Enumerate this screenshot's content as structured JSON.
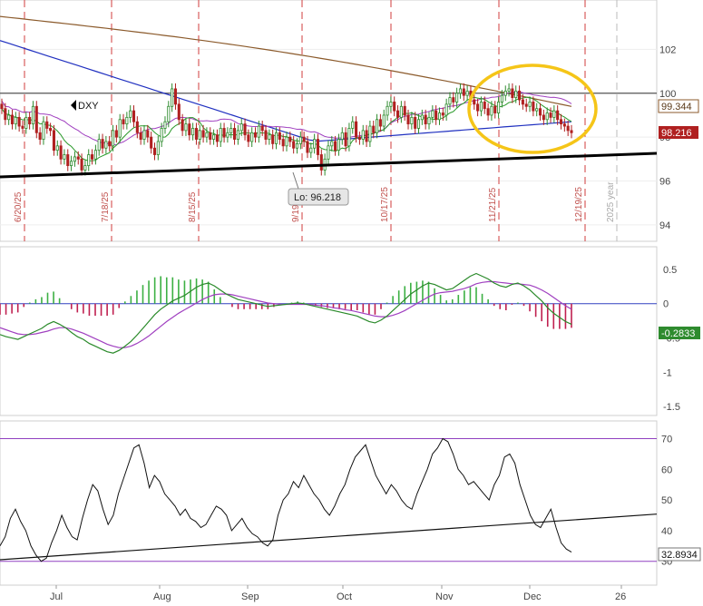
{
  "chart_data": [
    {
      "type": "candlestick",
      "panel": "price",
      "symbol": "DXY",
      "y_axis_ticks": [
        "102",
        "100",
        "98",
        "96",
        "94"
      ],
      "ylim": [
        93.5,
        104
      ],
      "price_labels": {
        "ma_value": "99.344",
        "last_value": "98.216"
      },
      "low_annotation": "Lo: 96.218",
      "vertical_date_labels": [
        "6/20/25",
        "7/18/25",
        "8/15/25",
        "9/19",
        "10/17/25",
        "11/21/25",
        "12/19/25",
        "2025 year"
      ],
      "horizontal_level": 100.0,
      "approx_close": [
        99.3,
        98.8,
        99.0,
        98.6,
        98.9,
        98.5,
        98.4,
        98.9,
        98.6,
        99.4,
        98.2,
        97.9,
        98.7,
        98.4,
        98.3,
        97.4,
        97.6,
        97.0,
        97.2,
        96.7,
        96.9,
        97.1,
        97.0,
        96.5,
        96.7,
        97.2,
        97.0,
        97.4,
        97.9,
        97.5,
        97.8,
        97.6,
        98.3,
        98.0,
        98.8,
        98.6,
        98.9,
        99.2,
        98.7,
        98.2,
        97.9,
        98.3,
        98.0,
        97.5,
        97.2,
        97.8,
        98.4,
        98.7,
        99.4,
        100.2,
        99.5,
        98.8,
        98.3,
        98.6,
        98.1,
        98.4,
        97.9,
        98.3,
        98.0,
        98.2,
        97.9,
        98.1,
        97.8,
        98.4,
        98.0,
        98.2,
        98.4,
        97.9,
        98.3,
        98.6,
        98.1,
        97.8,
        98.2,
        98.0,
        98.5,
        98.3,
        97.9,
        98.1,
        97.7,
        98.2,
        97.9,
        97.6,
        98.0,
        97.8,
        97.5,
        97.7,
        98.0,
        97.8,
        97.3,
        97.5,
        97.9,
        97.2,
        96.5,
        97.0,
        97.6,
        97.8,
        97.4,
        97.9,
        98.2,
        97.6,
        98.4,
        98.7,
        98.0,
        97.9,
        98.3,
        97.8,
        98.5,
        98.2,
        98.8,
        98.5,
        99.0,
        99.4,
        99.6,
        99.2,
        98.9,
        99.4,
        99.0,
        98.6,
        98.9,
        98.4,
        98.8,
        99.0,
        98.6,
        98.9,
        99.2,
        98.8,
        99.1,
        99.0,
        99.5,
        99.8,
        99.6,
        100.0,
        100.2,
        99.9,
        100.1,
        99.7,
        99.5,
        99.2,
        99.6,
        99.3,
        99.0,
        99.4,
        99.1,
        99.6,
        99.9,
        100.1,
        100.2,
        99.8,
        100.1,
        99.7,
        99.5,
        99.4,
        99.6,
        99.2,
        99.3,
        99.0,
        98.8,
        99.1,
        98.9,
        99.2,
        98.8,
        98.6,
        98.5,
        98.3,
        98.2
      ],
      "ma_200_start": 103.5,
      "ma_200_end": 99.4,
      "ma_100_start": 102.4,
      "ma_100_end": 98.7
    },
    {
      "type": "line",
      "panel": "macd",
      "y_axis_ticks": [
        "0.5",
        "0",
        "-0.5",
        "-1",
        "-1.5"
      ],
      "ylim": [
        -1.55,
        0.75
      ],
      "last_value": "-0.2833",
      "series": [
        {
          "approx_values": [
            -0.45,
            -0.48,
            -0.5,
            -0.52,
            -0.48,
            -0.44,
            -0.4,
            -0.36,
            -0.3,
            -0.26,
            -0.3,
            -0.35,
            -0.42,
            -0.48,
            -0.52,
            -0.58,
            -0.62,
            -0.66,
            -0.7,
            -0.72,
            -0.68,
            -0.62,
            -0.55,
            -0.46,
            -0.36,
            -0.26,
            -0.16,
            -0.08,
            -0.02,
            0.04,
            0.08,
            0.12,
            0.18,
            0.24,
            0.28,
            0.3,
            0.26,
            0.2,
            0.14,
            0.1,
            0.06,
            0.04,
            0.02,
            0.0,
            -0.02,
            -0.04,
            -0.03,
            -0.02,
            -0.01,
            0.0,
            0.01,
            0.0,
            -0.02,
            -0.04,
            -0.06,
            -0.08,
            -0.1,
            -0.12,
            -0.14,
            -0.16,
            -0.18,
            -0.22,
            -0.26,
            -0.28,
            -0.24,
            -0.18,
            -0.1,
            -0.02,
            0.06,
            0.14,
            0.2,
            0.26,
            0.3,
            0.28,
            0.24,
            0.2,
            0.22,
            0.28,
            0.34,
            0.4,
            0.44,
            0.4,
            0.36,
            0.3,
            0.26,
            0.24,
            0.28,
            0.3,
            0.26,
            0.2,
            0.12,
            0.04,
            -0.06,
            -0.14,
            -0.2,
            -0.26,
            -0.3
          ]
        },
        {
          "approx_values": [
            -0.35,
            -0.38,
            -0.41,
            -0.44,
            -0.45,
            -0.45,
            -0.44,
            -0.42,
            -0.4,
            -0.37,
            -0.35,
            -0.35,
            -0.37,
            -0.4,
            -0.43,
            -0.47,
            -0.51,
            -0.55,
            -0.59,
            -0.62,
            -0.64,
            -0.64,
            -0.62,
            -0.58,
            -0.53,
            -0.47,
            -0.4,
            -0.33,
            -0.26,
            -0.2,
            -0.14,
            -0.09,
            -0.04,
            0.01,
            0.06,
            0.1,
            0.13,
            0.14,
            0.14,
            0.13,
            0.11,
            0.09,
            0.07,
            0.05,
            0.03,
            0.01,
            0.0,
            -0.01,
            -0.01,
            -0.01,
            -0.01,
            -0.01,
            -0.01,
            -0.02,
            -0.03,
            -0.04,
            -0.06,
            -0.07,
            -0.09,
            -0.1,
            -0.12,
            -0.14,
            -0.16,
            -0.18,
            -0.19,
            -0.19,
            -0.17,
            -0.14,
            -0.1,
            -0.05,
            0.0,
            0.05,
            0.1,
            0.14,
            0.16,
            0.17,
            0.18,
            0.2,
            0.22,
            0.25,
            0.29,
            0.31,
            0.32,
            0.32,
            0.31,
            0.3,
            0.29,
            0.29,
            0.28,
            0.27,
            0.24,
            0.2,
            0.15,
            0.09,
            0.03,
            -0.03,
            -0.08
          ]
        }
      ]
    },
    {
      "type": "line",
      "panel": "oscillator",
      "y_axis_ticks": [
        "70",
        "60",
        "50",
        "40",
        "30"
      ],
      "ylim": [
        24,
        74
      ],
      "upper_band": 70,
      "lower_band": 30,
      "last_value": "32.8934",
      "x_tick_labels": [
        "Jul",
        "Aug",
        "Sep",
        "Oct",
        "Nov",
        "Dec",
        "26"
      ],
      "approx_values": [
        35,
        38,
        44,
        47,
        43,
        40,
        35,
        32,
        30,
        31,
        36,
        40,
        45,
        41,
        38,
        37,
        44,
        50,
        55,
        53,
        47,
        42,
        45,
        52,
        57,
        62,
        67,
        68,
        62,
        54,
        58,
        56,
        52,
        50,
        48,
        45,
        47,
        44,
        43,
        41,
        42,
        45,
        48,
        47,
        45,
        40,
        42,
        44,
        41,
        39,
        38,
        36,
        35,
        37,
        45,
        50,
        52,
        56,
        54,
        58,
        55,
        52,
        50,
        47,
        45,
        48,
        52,
        55,
        60,
        64,
        66,
        68,
        63,
        58,
        55,
        52,
        55,
        53,
        50,
        48,
        47,
        52,
        56,
        60,
        65,
        67,
        70,
        69,
        65,
        60,
        58,
        55,
        56,
        54,
        52,
        50,
        55,
        58,
        64,
        65,
        62,
        55,
        50,
        45,
        42,
        41,
        44,
        47,
        41,
        36,
        34,
        33
      ],
      "trendline": {
        "start": 30.5,
        "end": 45.4
      }
    }
  ]
}
